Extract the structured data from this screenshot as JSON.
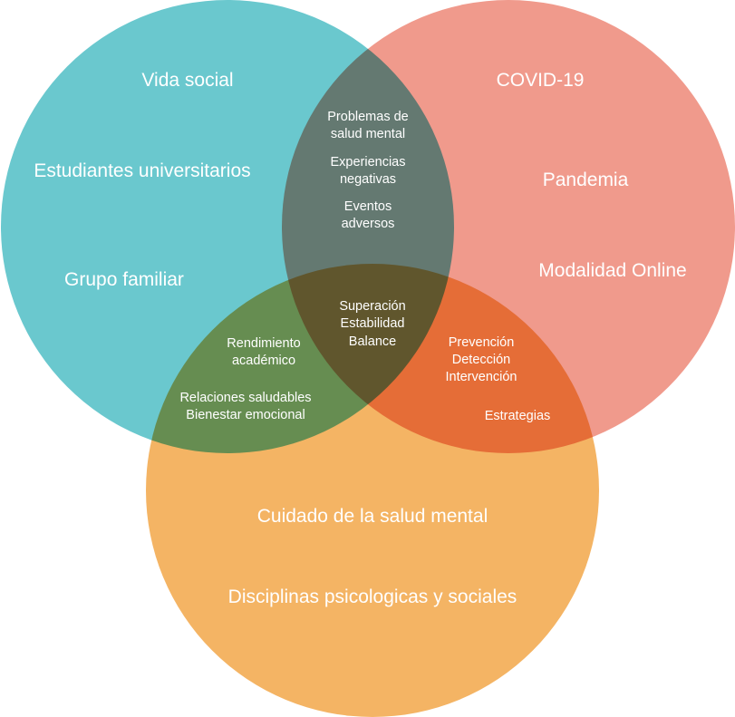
{
  "colors": {
    "social": "#6ac8ce",
    "covid": "#f09a8c",
    "care": "#f4b464",
    "text": "#ffffff"
  },
  "circles": {
    "social": {
      "labels": [
        "Vida social",
        "Estudiantes universitarios",
        "Grupo familiar"
      ]
    },
    "covid": {
      "labels": [
        "COVID-19",
        "Pandemia",
        "Modalidad Online"
      ]
    },
    "care": {
      "labels": [
        "Cuidado de la salud mental",
        "Disciplinas psicologicas y sociales"
      ]
    }
  },
  "overlaps": {
    "social_covid": {
      "labels": [
        "Problemas de",
        "salud mental",
        "Experiencias",
        "negativas",
        "Eventos",
        "adversos"
      ]
    },
    "social_care": {
      "labels": [
        "Rendimiento",
        "académico",
        "Relaciones saludables",
        "Bienestar emocional"
      ]
    },
    "covid_care": {
      "labels": [
        "Prevención",
        "Detección",
        "Intervención",
        "Estrategias"
      ]
    },
    "center": {
      "labels": [
        "Superación",
        "Estabilidad",
        "Balance"
      ]
    }
  }
}
